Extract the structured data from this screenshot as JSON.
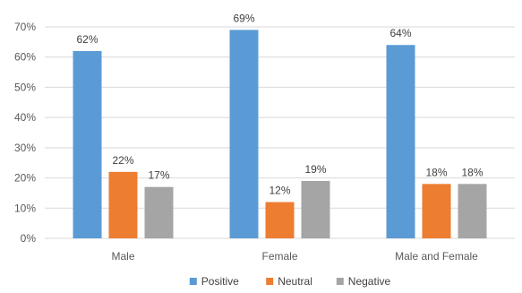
{
  "chart_data": {
    "type": "bar",
    "title": "",
    "xlabel": "",
    "ylabel": "",
    "categories": [
      "Male",
      "Female",
      "Male and Female"
    ],
    "series": [
      {
        "name": "Positive",
        "values": [
          62,
          69,
          64
        ],
        "labels": [
          "62%",
          "69%",
          "64%"
        ],
        "color": "#5B9BD5"
      },
      {
        "name": "Neutral",
        "values": [
          22,
          12,
          18
        ],
        "labels": [
          "22%",
          "12%",
          "18%"
        ],
        "color": "#ED7D31"
      },
      {
        "name": "Negative",
        "values": [
          17,
          19,
          18
        ],
        "labels": [
          "17%",
          "19%",
          "18%"
        ],
        "color": "#A5A5A5"
      }
    ],
    "ylim": [
      0,
      70
    ],
    "yticks": [
      0,
      10,
      20,
      30,
      40,
      50,
      60,
      70
    ],
    "ytick_labels": [
      "0%",
      "10%",
      "20%",
      "30%",
      "40%",
      "50%",
      "60%",
      "70%"
    ],
    "grid": true,
    "legend": "bottom",
    "gridline_color": "#D9D9D9"
  }
}
